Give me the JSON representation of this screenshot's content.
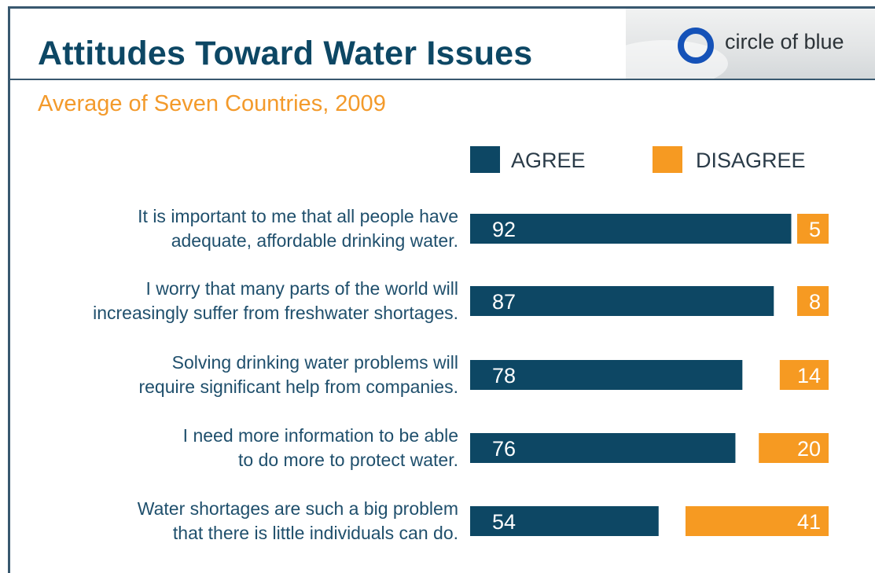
{
  "title": "Attitudes Toward Water Issues",
  "logo": {
    "text": "circle of blue",
    "icon": "circle-ring-icon",
    "ring_color": "#1552b8"
  },
  "subtitle": "Average of Seven Countries, 2009",
  "colors": {
    "agree": "#0d4764",
    "disagree": "#f69a22",
    "title": "#0d4764",
    "subtitle": "#f39a2b"
  },
  "legend": {
    "agree": "AGREE",
    "disagree": "DISAGREE"
  },
  "chart_data": {
    "type": "bar",
    "orientation": "horizontal",
    "stacked_layout": "agree-left, disagree-right-aligned",
    "title": "Attitudes Toward Water Issues",
    "subtitle": "Average of Seven Countries, 2009",
    "categories": [
      "It is important to me that all people have adequate, affordable drinking water.",
      "I worry that many parts of the world will increasingly suffer from freshwater shortages.",
      "Solving drinking water problems will require significant help from companies.",
      "I need more information to be able to do more to protect water.",
      "Water shortages are such a big problem that there is little individuals can do."
    ],
    "category_lines": [
      [
        "It is important to me that all people have",
        "adequate, affordable drinking water."
      ],
      [
        "I worry that many parts of the world will",
        "increasingly suffer from freshwater shortages."
      ],
      [
        "Solving drinking water problems will",
        "require significant help from companies."
      ],
      [
        "I need more information to be able",
        "to do more to protect water."
      ],
      [
        "Water shortages are such a big problem",
        "that there is little individuals can do."
      ]
    ],
    "series": [
      {
        "name": "AGREE",
        "values": [
          92,
          87,
          78,
          76,
          54
        ]
      },
      {
        "name": "DISAGREE",
        "values": [
          5,
          8,
          14,
          20,
          41
        ]
      }
    ],
    "legend_position": "top",
    "grid": false,
    "xlim": [
      0,
      100
    ]
  }
}
